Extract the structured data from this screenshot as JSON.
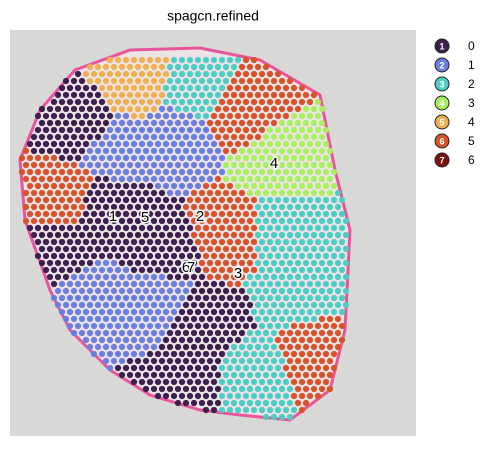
{
  "chart_data": {
    "type": "spatial",
    "title": "spagcn.refined",
    "categories": [
      "0",
      "1",
      "2",
      "3",
      "4",
      "5",
      "6"
    ],
    "marker_labels": [
      "1",
      "2",
      "3",
      "4",
      "5",
      "6",
      "7"
    ],
    "colors": [
      "#3b1f4f",
      "#6b7fe0",
      "#4ecdc4",
      "#a8f060",
      "#f0b050",
      "#d9532a",
      "#7a1010"
    ],
    "annotations": [
      "1",
      "5",
      "2",
      "4",
      "6",
      "7",
      "3"
    ]
  }
}
